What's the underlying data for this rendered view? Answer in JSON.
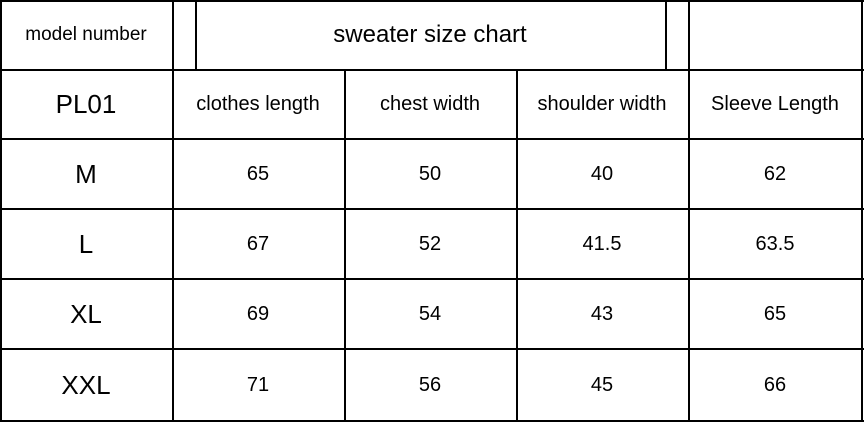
{
  "title_row": {
    "model_label": "model number",
    "title": "sweater size chart"
  },
  "model": "PL01",
  "columns": [
    "clothes length",
    "chest width",
    "shoulder width",
    "Sleeve Length"
  ],
  "rows": [
    {
      "size": "M",
      "values": [
        "65",
        "50",
        "40",
        "62"
      ]
    },
    {
      "size": "L",
      "values": [
        "67",
        "52",
        "41.5",
        "63.5"
      ]
    },
    {
      "size": "XL",
      "values": [
        "69",
        "54",
        "43",
        "65"
      ]
    },
    {
      "size": "XXL",
      "values": [
        "71",
        "56",
        "45",
        "66"
      ]
    }
  ]
}
